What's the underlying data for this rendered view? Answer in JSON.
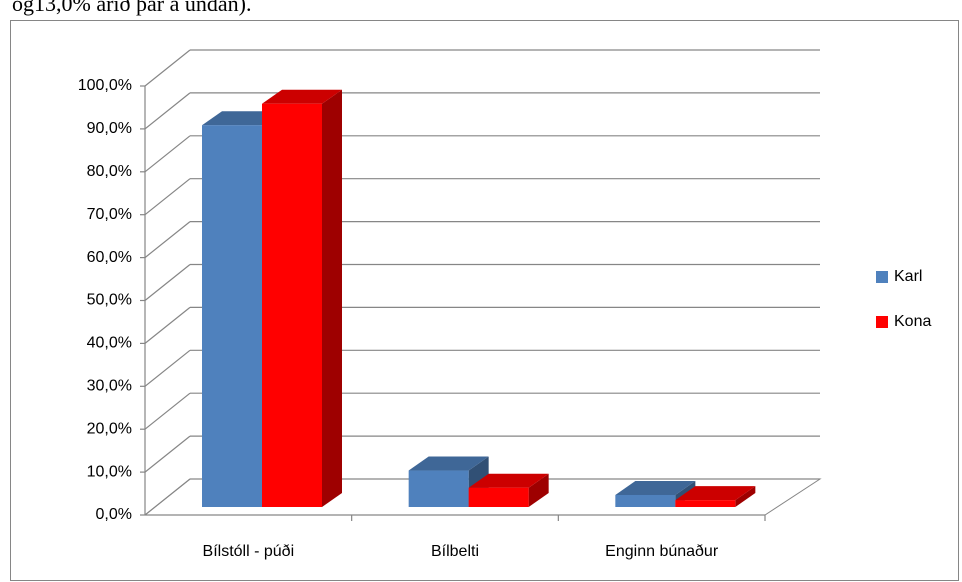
{
  "caption": "og13,0% árið þar á undan).",
  "chart_data": {
    "type": "bar3d",
    "categories": [
      "Bílstóll - púði",
      "Bílbelti",
      "Enginn búnaður"
    ],
    "series": [
      {
        "name": "Karl",
        "color": "#4f81bd",
        "values": [
          89.0,
          8.5,
          2.8
        ]
      },
      {
        "name": "Kona",
        "color": "#ff0000",
        "values": [
          94.0,
          4.5,
          1.6
        ]
      }
    ],
    "ylim": [
      0,
      100
    ],
    "yticks": [
      {
        "value": 0,
        "label": "0,0%"
      },
      {
        "value": 10,
        "label": "10,0%"
      },
      {
        "value": 20,
        "label": "20,0%"
      },
      {
        "value": 30,
        "label": "30,0%"
      },
      {
        "value": 40,
        "label": "40,0%"
      },
      {
        "value": 50,
        "label": "50,0%"
      },
      {
        "value": 60,
        "label": "60,0%"
      },
      {
        "value": 70,
        "label": "70,0%"
      },
      {
        "value": 80,
        "label": "80,0%"
      },
      {
        "value": 90,
        "label": "90,0%"
      },
      {
        "value": 100,
        "label": "100,0%"
      }
    ],
    "grid": true,
    "legend": "right"
  }
}
